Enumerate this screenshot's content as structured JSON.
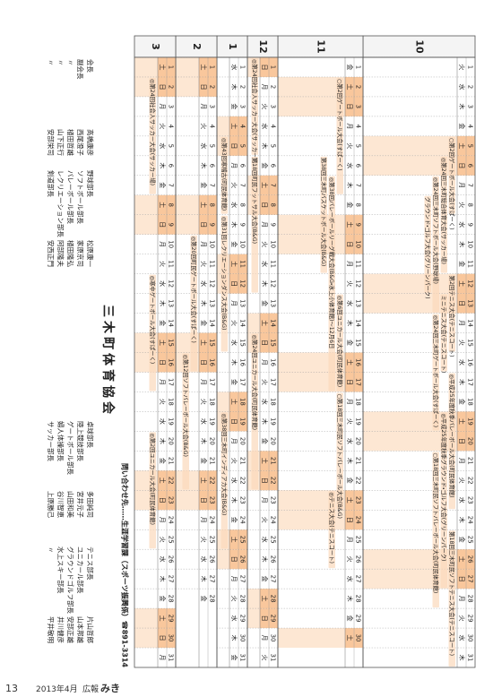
{
  "calendar": {
    "weekend": [
      "土",
      "日"
    ],
    "weekend_color": "#f9c79c",
    "event_color": "#fde7d3",
    "months": [
      {
        "label": "10",
        "days": [
          1,
          2,
          3,
          4,
          5,
          6,
          7,
          8,
          9,
          10,
          11,
          12,
          13,
          14,
          15,
          16,
          17,
          18,
          19,
          20,
          21,
          22,
          23,
          24,
          25,
          26,
          27,
          28,
          29,
          30,
          31
        ],
        "weekdays": [
          "火",
          "水",
          "木",
          "金",
          "土",
          "日",
          "月",
          "火",
          "水",
          "木",
          "金",
          "土",
          "日",
          "月",
          "火",
          "水",
          "木",
          "金",
          "土",
          "日",
          "月",
          "火",
          "水",
          "木",
          "金",
          "土",
          "日",
          "月",
          "火",
          "水",
          "木"
        ],
        "events": [
          {
            "text": "○第2回ゲートボール大会(すぱーく)",
            "start": 5,
            "end": 8
          },
          {
            "text": "◎第24回三木町総合体育大会(サッカー場)",
            "start": 6,
            "end": 11
          },
          {
            "text": "◎第24回三木町ソフトボール大会(野球場)",
            "start": 7,
            "end": 13
          },
          {
            "text": "グラウンド・ゴルフ大会(グリーンパーク)",
            "start": 8,
            "end": 12
          },
          {
            "text": "第2回テニス大会(テニスコート)",
            "start": 12,
            "end": 15
          },
          {
            "text": "ミニテニス大会(テニスコート)",
            "start": 13,
            "end": 16
          },
          {
            "text": "◎第24回三木町ゲートボール大会(すぱーく)",
            "start": 14,
            "end": 19
          },
          {
            "text": "◎平成25年度秋季バレーボール大会(町民体育館)",
            "start": 17,
            "end": 23
          },
          {
            "text": "◎平成25年度秋季グラウンド・ゴルフ大会(グリーンパーク)",
            "start": 19,
            "end": 27
          },
          {
            "text": "○第18回三木町民ソフトバレーボール大会(町民体育館)",
            "start": 21,
            "end": 28
          },
          {
            "text": "第18回三木町民ソフトテニス大会(テニスコート)",
            "start": 25,
            "end": 31
          }
        ]
      },
      {
        "label": "11",
        "days": [
          1,
          2,
          3,
          4,
          5,
          6,
          7,
          8,
          9,
          10,
          11,
          12,
          13,
          14,
          15,
          16,
          17,
          18,
          19,
          20,
          21,
          22,
          23,
          24,
          25,
          26,
          27,
          28,
          29,
          30
        ],
        "weekdays": [
          "金",
          "土",
          "日",
          "月",
          "火",
          "水",
          "木",
          "金",
          "土",
          "日",
          "月",
          "火",
          "水",
          "木",
          "金",
          "土",
          "日",
          "月",
          "火",
          "水",
          "木",
          "金",
          "土",
          "日",
          "月",
          "火",
          "水",
          "木",
          "金",
          "土"
        ],
        "events": [
          {
            "text": "○第2回ゲートボール大会(すぱーく)",
            "start": 2,
            "end": 7
          },
          {
            "text": "◎第38回バレーボールリーグ戦大会(B&G・氷上小体育館)〜12月6日",
            "start": 7,
            "end": 17
          },
          {
            "text": "第38回三木町バスケットボール大会(B&G)",
            "start": 6,
            "end": 11
          },
          {
            "text": "◎第6回ユニカール大会(町民体育館)",
            "start": 13,
            "end": 17
          },
          {
            "text": "○第18回三木町民ソフトバレーボール大会(B&G)",
            "start": 18,
            "end": 23
          },
          {
            "text": "◎テニス大会(テニスコート)",
            "start": 23,
            "end": 26
          }
        ]
      },
      {
        "label": "12",
        "days": [
          1,
          2,
          3,
          4,
          5,
          6,
          7,
          8,
          9,
          10,
          11,
          12,
          13,
          14,
          15,
          16,
          17,
          18,
          19,
          20,
          21,
          22,
          23,
          24,
          25,
          26,
          27,
          28,
          29,
          30,
          31
        ],
        "weekdays": [
          "日",
          "月",
          "火",
          "水",
          "木",
          "金",
          "土",
          "日",
          "月",
          "火",
          "水",
          "木",
          "金",
          "土",
          "日",
          "月",
          "火",
          "水",
          "木",
          "金",
          "土",
          "日",
          "月",
          "火",
          "水",
          "木",
          "金",
          "土",
          "日",
          "月",
          "火"
        ],
        "events": [
          {
            "text": "◎第24回社会人サッカー大会(サッカー場)",
            "start": 1,
            "end": 5
          },
          {
            "text": "第18回町民フットサル大会(B&G)",
            "start": 6,
            "end": 12
          },
          {
            "text": "◎第24回ユニカール大会(町民体育館)",
            "start": 15,
            "end": 22
          }
        ]
      },
      {
        "label": "1",
        "days": [
          1,
          2,
          3,
          4,
          5,
          6,
          7,
          8,
          9,
          10,
          11,
          12,
          13,
          14,
          15,
          16,
          17,
          18,
          19,
          20,
          21,
          22,
          23,
          24,
          25,
          26,
          27,
          28,
          29,
          30,
          31
        ],
        "weekdays": [
          "水",
          "木",
          "金",
          "土",
          "日",
          "月",
          "火",
          "水",
          "木",
          "金",
          "土",
          "日",
          "月",
          "火",
          "水",
          "木",
          "金",
          "土",
          "日",
          "月",
          "火",
          "水",
          "木",
          "金",
          "土",
          "日",
          "月",
          "火",
          "水",
          "木",
          "金"
        ],
        "events": [
          {
            "text": "◎第43回寒稽古(町民体育館)",
            "start": 5,
            "end": 8
          },
          {
            "text": "◎第31回レクリエーションダンス大会(B&G)",
            "start": 9,
            "end": 15
          },
          {
            "text": "◎第38回三木町インディアカ大会(B&G)",
            "start": 19,
            "end": 25
          }
        ]
      },
      {
        "label": "2",
        "days": [
          1,
          2,
          3,
          4,
          5,
          6,
          7,
          8,
          9,
          10,
          11,
          12,
          13,
          14,
          15,
          16,
          17,
          18,
          19,
          20,
          21,
          22,
          23,
          24,
          25,
          26,
          27,
          28
        ],
        "weekdays": [
          "土",
          "日",
          "月",
          "火",
          "水",
          "木",
          "金",
          "土",
          "日",
          "月",
          "火",
          "水",
          "木",
          "金",
          "土",
          "日",
          "月",
          "火",
          "水",
          "木",
          "金",
          "土",
          "日",
          "月",
          "火",
          "水",
          "木",
          "金"
        ],
        "events": [
          {
            "text": "◎第20回町民ゲートボール大会(すぱーく)",
            "start": 10,
            "end": 16
          },
          {
            "text": "◎第12回ソフトバレーボール大会(B&G)",
            "start": 16,
            "end": 22
          }
        ]
      },
      {
        "label": "3",
        "days": [
          1,
          2,
          3,
          4,
          5,
          6,
          7,
          8,
          9,
          10,
          11,
          12,
          13,
          14,
          15,
          16,
          17,
          18,
          19,
          20,
          21,
          22,
          23,
          24,
          25,
          26,
          27,
          28,
          29,
          30,
          31
        ],
        "weekdays": [
          "土",
          "日",
          "月",
          "火",
          "水",
          "木",
          "金",
          "土",
          "日",
          "月",
          "火",
          "水",
          "木",
          "金",
          "土",
          "日",
          "月",
          "火",
          "水",
          "木",
          "金",
          "土",
          "日",
          "月",
          "火",
          "水",
          "木",
          "金",
          "土",
          "日",
          "月"
        ],
        "events": [
          {
            "text": "◎第24回社会人サッカー大会(サッカー場)",
            "start": 2,
            "end": 7
          },
          {
            "text": "◎寒中ゲートボール大会(すぱーく)",
            "start": 12,
            "end": 17
          },
          {
            "text": "◎第2回ユニカール大会(町民体育館)",
            "start": 20,
            "end": 25
          }
        ]
      }
    ]
  },
  "contact": "問い合わせ先……生涯学習課（スポーツ振興係）☎891-3314",
  "organization": {
    "title": "三木町体育協会",
    "groups": [
      [
        {
          "role": "会長",
          "name": "高橋康彦"
        },
        {
          "role": "副会長",
          "name": "西尾澄子"
        },
        {
          "role": "〃",
          "name": "植田哲雄"
        },
        {
          "role": "〃",
          "name": "山下正行"
        },
        {
          "role": "〃",
          "name": "安部栄司"
        }
      ],
      [
        {
          "role": "野球部長",
          "name": "松原康一"
        },
        {
          "role": "ソフトボール部長",
          "name": "家原京司"
        },
        {
          "role": "バレーボール部長",
          "name": "植田隆弘"
        },
        {
          "role": "レクリエーション部長",
          "name": "阿部隆夫"
        },
        {
          "role": "剣道部長",
          "name": "安西正門"
        }
      ],
      [
        {
          "role": "卓球部長",
          "name": "多田純司"
        },
        {
          "role": "陸上競技部長",
          "name": "宮井元子"
        },
        {
          "role": "ゲートボール部長",
          "name": "山田和美"
        },
        {
          "role": "婦人体操部長",
          "name": "谷川智恵"
        },
        {
          "role": "サッカー部長",
          "name": "上原勝己"
        }
      ],
      [
        {
          "role": "テニス部長",
          "name": "片山哲郎"
        },
        {
          "role": "ユニカール部長",
          "name": "山本邦雄"
        },
        {
          "role": "グラウンドゴルフ部長",
          "name": "安部正雄"
        },
        {
          "role": "水上スキー部長",
          "name": "井川健彦"
        },
        {
          "role": "〃",
          "name": "平井敏明"
        }
      ]
    ]
  },
  "footer": {
    "page": "13",
    "date": "2013年4月",
    "publication": "広報",
    "name": "みき"
  }
}
